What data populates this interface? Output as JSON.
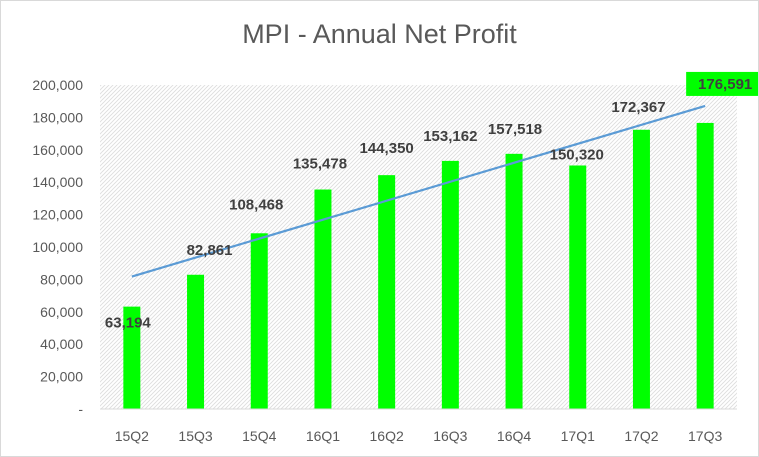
{
  "chart_data": {
    "type": "bar",
    "title": "MPI - Annual Net Profit",
    "xlabel": "",
    "ylabel": "",
    "categories": [
      "15Q2",
      "15Q3",
      "15Q4",
      "16Q1",
      "16Q2",
      "16Q3",
      "16Q4",
      "17Q1",
      "17Q2",
      "17Q3"
    ],
    "values": [
      63194,
      82861,
      108468,
      135478,
      144350,
      153162,
      157518,
      150320,
      172367,
      176591
    ],
    "data_labels": [
      "63,194",
      "82,861",
      "108,468",
      "135,478",
      "144,350",
      "153,162",
      "157,518",
      "150,320",
      "172,367",
      "176,591"
    ],
    "ylim": [
      0,
      200000
    ],
    "y_ticks": [
      0,
      20000,
      40000,
      60000,
      80000,
      100000,
      120000,
      140000,
      160000,
      180000,
      200000
    ],
    "y_tick_labels": [
      "-",
      "20,000",
      "40,000",
      "60,000",
      "80,000",
      "100,000",
      "120,000",
      "140,000",
      "160,000",
      "180,000",
      "200,000"
    ],
    "trendline": {
      "type": "linear",
      "color": "#5b9bd5"
    },
    "bar_color": "#00ff00",
    "highlight_label_index": 9,
    "highlight_color": "#00ff00",
    "grid": false,
    "legend": "none",
    "plot_background": "hatched"
  }
}
